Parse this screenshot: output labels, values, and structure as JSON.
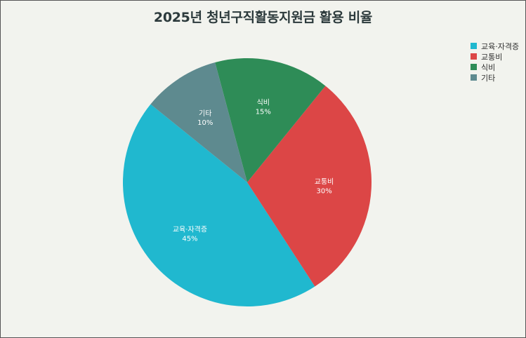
{
  "chart_data": {
    "type": "pie",
    "title": "2025년 청년구직활동지원금 활용 비율",
    "categories": [
      "교육·자격증",
      "교통비",
      "식비",
      "기타"
    ],
    "values": [
      45,
      30,
      15,
      10
    ],
    "value_labels": [
      "45%",
      "30%",
      "15%",
      "10%"
    ],
    "colors": [
      "#20b8cf",
      "#dc4646",
      "#2e8c57",
      "#5e8a8f"
    ],
    "legend_position": "top-right"
  }
}
